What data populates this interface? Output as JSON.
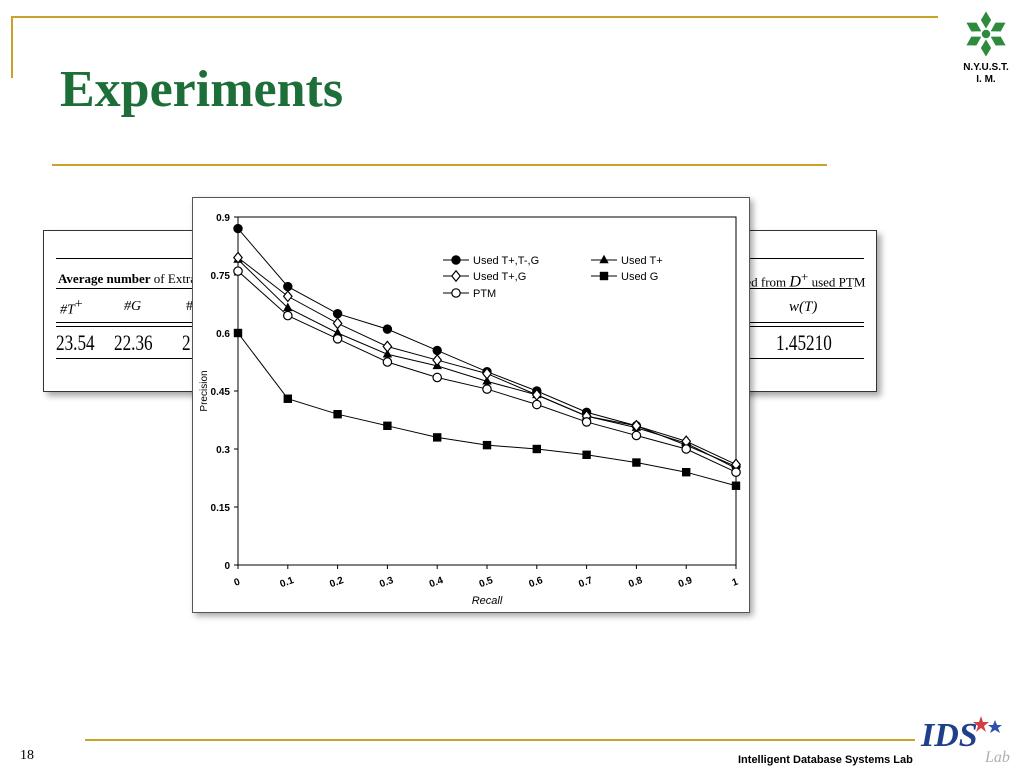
{
  "slide": {
    "title": "Experiments",
    "page_number": "18",
    "footer": "Intelligent Database Systems Lab",
    "logo_text_line1": "N.Y.U.S.T.",
    "logo_text_line2": "I. M.",
    "ids_logo_text": "IDS",
    "ids_logo_subtext": "Lab"
  },
  "background_table": {
    "header_left_bold": "Average number",
    "header_left_rest": " of Extracted Term",
    "header_right": "cted from ",
    "header_right_sym": "D",
    "header_right_sup": "+",
    "header_right_tail": " used PTM",
    "col1_label": "#T",
    "col1_sup": "+",
    "col2_label": "#G",
    "col3_partial": "#",
    "col_right_label": "w(T)",
    "row_values": [
      "23.54",
      "22.36",
      "2"
    ],
    "row_right_value": "1.45210"
  },
  "chart_data": {
    "type": "line",
    "xlabel": "Recall",
    "ylabel": "Precision",
    "x": [
      0,
      0.1,
      0.2,
      0.3,
      0.4,
      0.5,
      0.6,
      0.7,
      0.8,
      0.9,
      1
    ],
    "x_tick_labels": [
      "0",
      "0.1",
      "0.2",
      "0.3",
      "0.4",
      "0.5",
      "0.6",
      "0.7",
      "0.8",
      "0.9",
      "1"
    ],
    "y_ticks": [
      0,
      0.15,
      0.3,
      0.45,
      0.6,
      0.75,
      0.9
    ],
    "y_tick_labels": [
      "0",
      "0.15",
      "0.3",
      "0.45",
      "0.6",
      "0.75",
      "0.9"
    ],
    "xlim": [
      0,
      1
    ],
    "ylim": [
      0,
      0.9
    ],
    "grid": false,
    "legend_placement": "top-right",
    "series": [
      {
        "name": "Used T+,T-,G",
        "marker": "filled-circle",
        "values": [
          0.87,
          0.72,
          0.65,
          0.61,
          0.555,
          0.5,
          0.45,
          0.395,
          0.36,
          0.31,
          0.255
        ]
      },
      {
        "name": "Used T+",
        "marker": "filled-triangle",
        "values": [
          0.79,
          0.665,
          0.6,
          0.545,
          0.515,
          0.475,
          0.44,
          0.385,
          0.355,
          0.315,
          0.25
        ]
      },
      {
        "name": "Used T+,G",
        "marker": "open-diamond",
        "values": [
          0.795,
          0.695,
          0.625,
          0.565,
          0.53,
          0.495,
          0.44,
          0.385,
          0.36,
          0.32,
          0.26
        ]
      },
      {
        "name": "Used G",
        "marker": "filled-square",
        "values": [
          0.6,
          0.43,
          0.39,
          0.36,
          0.33,
          0.31,
          0.3,
          0.285,
          0.265,
          0.24,
          0.205
        ]
      },
      {
        "name": "PTM",
        "marker": "open-circle",
        "values": [
          0.76,
          0.645,
          0.585,
          0.525,
          0.485,
          0.455,
          0.415,
          0.37,
          0.335,
          0.3,
          0.24
        ]
      }
    ]
  }
}
